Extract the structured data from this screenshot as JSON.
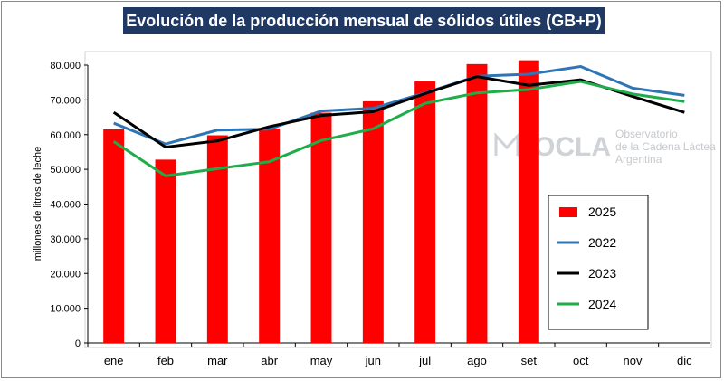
{
  "chart_data": {
    "type": "bar+line",
    "title": "Evolución de la producción mensual de sólidos útiles (GB+P)",
    "ylabel": "millones de litros de leche",
    "xlabel": "",
    "ylim": [
      0,
      80000
    ],
    "yticks": [
      0,
      10000,
      20000,
      30000,
      40000,
      50000,
      60000,
      70000,
      80000
    ],
    "ytick_labels": [
      "0",
      "10.000",
      "20.000",
      "30.000",
      "40.000",
      "50.000",
      "60.000",
      "70.000",
      "80.000"
    ],
    "categories": [
      "ene",
      "feb",
      "mar",
      "abr",
      "may",
      "jun",
      "jul",
      "ago",
      "set",
      "oct",
      "nov",
      "dic"
    ],
    "bars": {
      "name": "2025",
      "color": "#ff0000",
      "values": [
        61500,
        52800,
        59800,
        61800,
        66300,
        69600,
        75300,
        80300,
        81400,
        null,
        null,
        null
      ]
    },
    "series": [
      {
        "name": "2022",
        "color": "#2e75b6",
        "values": [
          63300,
          57300,
          61300,
          61600,
          66800,
          67600,
          72000,
          76800,
          77400,
          79600,
          73400,
          71300
        ]
      },
      {
        "name": "2023",
        "color": "#000000",
        "values": [
          66400,
          56400,
          58200,
          62300,
          65500,
          66600,
          71800,
          76700,
          74200,
          75800,
          71000,
          66400
        ]
      },
      {
        "name": "2024",
        "color": "#1fad4a",
        "values": [
          58000,
          48100,
          50200,
          52200,
          58300,
          61700,
          69000,
          72000,
          73000,
          75300,
          71700,
          69500
        ]
      }
    ],
    "legend": {
      "placement": "right",
      "entries": [
        "2025",
        "2022",
        "2023",
        "2024"
      ]
    },
    "grid": false,
    "watermark": {
      "brand": "OCLA",
      "line1": "Observatorio",
      "line2": "de la Cadena Láctea",
      "line3": "Argentina"
    }
  }
}
